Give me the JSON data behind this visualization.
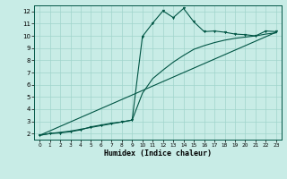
{
  "title": "",
  "xlabel": "Humidex (Indice chaleur)",
  "background_color": "#c8ece6",
  "grid_color": "#a0d4cc",
  "line_color": "#005544",
  "xlim": [
    -0.5,
    23.5
  ],
  "ylim": [
    1.5,
    12.5
  ],
  "xticks": [
    0,
    1,
    2,
    3,
    4,
    5,
    6,
    7,
    8,
    9,
    10,
    11,
    12,
    13,
    14,
    15,
    16,
    17,
    18,
    19,
    20,
    21,
    22,
    23
  ],
  "yticks": [
    2,
    3,
    4,
    5,
    6,
    7,
    8,
    9,
    10,
    11,
    12
  ],
  "curve1_x": [
    0,
    1,
    2,
    3,
    4,
    5,
    6,
    7,
    8,
    9,
    10,
    11,
    12,
    13,
    14,
    15,
    16,
    17,
    18,
    19,
    20,
    21,
    22,
    23
  ],
  "curve1_y": [
    1.85,
    2.0,
    2.05,
    2.15,
    2.3,
    2.55,
    2.7,
    2.85,
    2.95,
    3.1,
    9.95,
    11.05,
    12.05,
    11.5,
    12.25,
    11.15,
    10.35,
    10.4,
    10.3,
    10.15,
    10.1,
    10.0,
    10.4,
    10.35
  ],
  "curve2_x": [
    0,
    23
  ],
  "curve2_y": [
    1.85,
    10.3
  ],
  "curve3_x": [
    0,
    1,
    2,
    3,
    4,
    5,
    6,
    7,
    8,
    9,
    10,
    11,
    12,
    13,
    14,
    15,
    16,
    17,
    18,
    19,
    20,
    21,
    22,
    23
  ],
  "curve3_y": [
    1.85,
    2.0,
    2.1,
    2.2,
    2.35,
    2.5,
    2.65,
    2.8,
    2.95,
    3.1,
    5.3,
    6.5,
    7.2,
    7.85,
    8.4,
    8.9,
    9.2,
    9.45,
    9.65,
    9.8,
    9.9,
    10.0,
    10.15,
    10.25
  ]
}
